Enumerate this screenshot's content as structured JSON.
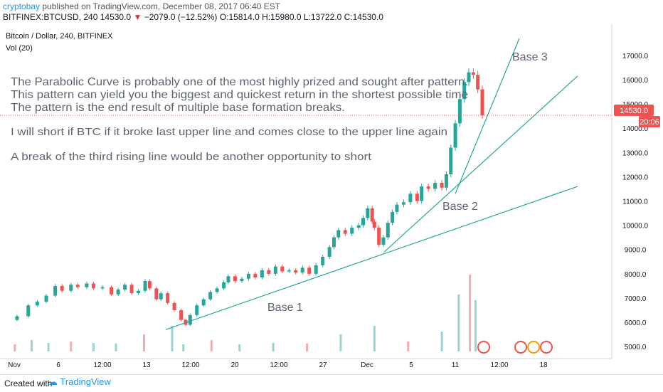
{
  "header": {
    "author": "cryptobay",
    "published": "published on TradingView.com, December 08, 2017 06:40 EST",
    "symbol": "BITFINEX:BTCUSD, 240",
    "last": "14530.0",
    "change": "−2079.0 (−12.52%)",
    "ohlc": "O:15814.0 H:15980.0 L:13722.0 C:14530.0"
  },
  "chart_title": "Bitcoin / Dollar, 240, BITFINEX",
  "vol_label": "Vol (20)",
  "annotations": {
    "line1": "The Parabolic Curve is probably one of the most highly prized and sought after pattern.",
    "line2": "This pattern can yield you the biggest and quickest return in the shortest possible time",
    "line3": "The pattern is the end result of multiple base formation breaks.",
    "line4": "I will short if BTC if it broke last upper line and comes close to the upper line again",
    "line5": "A break of the third rising line would be another opportunity to short",
    "base1": "Base 1",
    "base2": "Base 2",
    "base3": "Base 3"
  },
  "price_tags": {
    "price": "14530.0",
    "countdown": "20:06"
  },
  "footer": {
    "made": "Created with",
    "brand": "TradingView"
  },
  "colors": {
    "up": "#26a69a",
    "down": "#ef5350",
    "trend": "#26a69a",
    "text": "#5d6470",
    "price_line": "#ef5350"
  },
  "chart_data": {
    "type": "candlestick",
    "ylim": [
      4800,
      17700
    ],
    "y_ticks": [
      5000,
      6000,
      7000,
      8000,
      9000,
      10000,
      11000,
      12000,
      13000,
      14000,
      15000,
      16000,
      17000
    ],
    "x_ticks": [
      "Nov",
      "6",
      "12:00",
      "13",
      "12:00",
      "20",
      "12:00",
      "27",
      "Dec",
      "5",
      "11",
      "12:00",
      "18"
    ],
    "price_path": [
      [
        0,
        6100
      ],
      [
        12,
        6250
      ],
      [
        22,
        6700
      ],
      [
        30,
        6850
      ],
      [
        38,
        7100
      ],
      [
        46,
        7500
      ],
      [
        52,
        7300
      ],
      [
        60,
        7550
      ],
      [
        66,
        7450
      ],
      [
        74,
        7600
      ],
      [
        80,
        7400
      ],
      [
        88,
        7450
      ],
      [
        96,
        7150
      ],
      [
        102,
        7350
      ],
      [
        108,
        7550
      ],
      [
        114,
        7200
      ],
      [
        120,
        7300
      ],
      [
        126,
        7700
      ],
      [
        130,
        7400
      ],
      [
        136,
        6950
      ],
      [
        140,
        7200
      ],
      [
        146,
        6800
      ],
      [
        152,
        6500
      ],
      [
        158,
        6100
      ],
      [
        162,
        5900
      ],
      [
        166,
        6300
      ],
      [
        172,
        6700
      ],
      [
        178,
        6950
      ],
      [
        184,
        7250
      ],
      [
        190,
        7400
      ],
      [
        196,
        7650
      ],
      [
        200,
        7900
      ],
      [
        206,
        7700
      ],
      [
        212,
        7800
      ],
      [
        218,
        8000
      ],
      [
        224,
        7850
      ],
      [
        230,
        8150
      ],
      [
        236,
        8000
      ],
      [
        242,
        8300
      ],
      [
        248,
        8100
      ],
      [
        254,
        8150
      ],
      [
        260,
        8050
      ],
      [
        266,
        8250
      ],
      [
        272,
        8000
      ],
      [
        278,
        8350
      ],
      [
        284,
        8700
      ],
      [
        290,
        9100
      ],
      [
        294,
        9500
      ],
      [
        298,
        9800
      ],
      [
        304,
        9650
      ],
      [
        310,
        9900
      ],
      [
        316,
        10000
      ],
      [
        320,
        10300
      ],
      [
        324,
        10700
      ],
      [
        328,
        10150
      ],
      [
        330,
        9900
      ],
      [
        334,
        9200
      ],
      [
        338,
        9500
      ],
      [
        342,
        10100
      ],
      [
        346,
        10550
      ],
      [
        350,
        10850
      ],
      [
        356,
        10950
      ],
      [
        362,
        11300
      ],
      [
        368,
        11000
      ],
      [
        372,
        11600
      ],
      [
        378,
        11500
      ],
      [
        384,
        11750
      ],
      [
        390,
        11550
      ],
      [
        394,
        12100
      ],
      [
        398,
        13200
      ],
      [
        402,
        14200
      ],
      [
        406,
        15200
      ],
      [
        410,
        15900
      ],
      [
        414,
        16300
      ],
      [
        418,
        16200
      ],
      [
        422,
        15600
      ],
      [
        426,
        14530
      ]
    ],
    "volume": [
      [
        10,
        250
      ],
      [
        25,
        400
      ],
      [
        40,
        300
      ],
      [
        60,
        350
      ],
      [
        80,
        300
      ],
      [
        100,
        280
      ],
      [
        125,
        600
      ],
      [
        150,
        900
      ],
      [
        160,
        250
      ],
      [
        185,
        400
      ],
      [
        210,
        250
      ],
      [
        240,
        300
      ],
      [
        270,
        280
      ],
      [
        300,
        600
      ],
      [
        330,
        900
      ],
      [
        360,
        350
      ],
      [
        390,
        700
      ],
      [
        405,
        2000
      ],
      [
        415,
        2700
      ],
      [
        420,
        1800
      ]
    ],
    "trend_lines": [
      {
        "name": "Base 1",
        "from": [
          0,
          5900
        ],
        "to": [
          9,
          11600
        ]
      },
      {
        "name": "Base 2",
        "from": [
          0,
          8900
        ],
        "to": [
          9,
          16150
        ]
      },
      {
        "name": "Base 3",
        "from": [
          0,
          11300
        ],
        "to": [
          9,
          17800
        ]
      }
    ]
  }
}
